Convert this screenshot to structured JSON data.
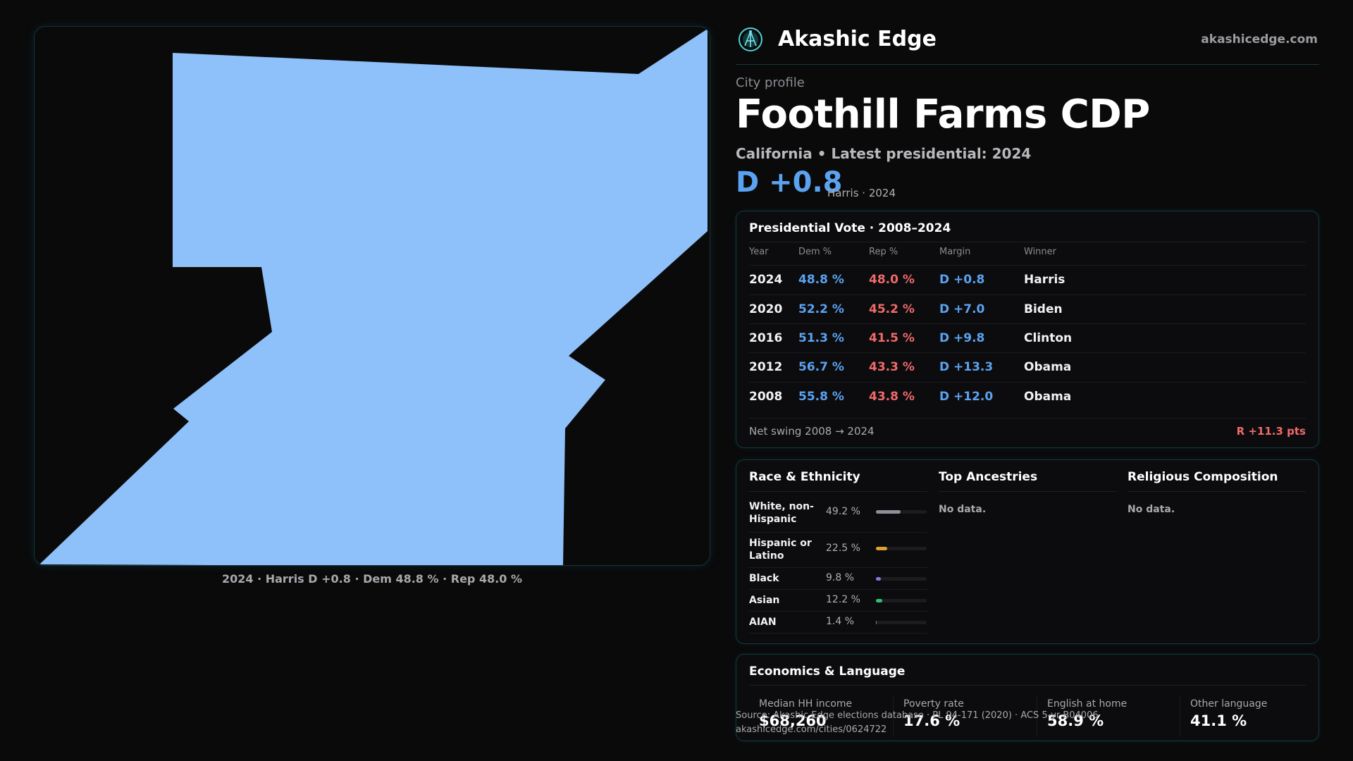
{
  "brand": {
    "name": "Akashic Edge",
    "url": "akashicedge.com",
    "logo_icon": "network-globe-icon"
  },
  "profile": {
    "eyebrow": "City profile",
    "title": "Foothill Farms CDP",
    "subtitle": "California • Latest presidential: 2024",
    "margin": "D +0.8",
    "margin_note": "Harris · 2024"
  },
  "map": {
    "caption": "2024 · Harris D +0.8 · Dem 48.8 % · Rep 48.0 %",
    "fill_color": "#8ec0f9"
  },
  "presidential": {
    "title": "Presidential Vote · 2008–2024",
    "headers": {
      "year": "Year",
      "dem": "Dem %",
      "rep": "Rep %",
      "margin": "Margin",
      "winner": "Winner"
    },
    "rows": [
      {
        "year": "2024",
        "dem": "48.8 %",
        "rep": "48.0 %",
        "margin": "D +0.8",
        "winner": "Harris"
      },
      {
        "year": "2020",
        "dem": "52.2 %",
        "rep": "45.2 %",
        "margin": "D +7.0",
        "winner": "Biden"
      },
      {
        "year": "2016",
        "dem": "51.3 %",
        "rep": "41.5 %",
        "margin": "D +9.8",
        "winner": "Clinton"
      },
      {
        "year": "2012",
        "dem": "56.7 %",
        "rep": "43.3 %",
        "margin": "D +13.3",
        "winner": "Obama"
      },
      {
        "year": "2008",
        "dem": "55.8 %",
        "rep": "43.8 %",
        "margin": "D +12.0",
        "winner": "Obama"
      }
    ],
    "swing_label": "Net swing 2008 → 2024",
    "swing_value": "R +11.3 pts"
  },
  "race": {
    "title": "Race & Ethnicity",
    "items": [
      {
        "name": "White, non-Hispanic",
        "value": "49.2 %",
        "pct": 49.2,
        "color": "#8e9097"
      },
      {
        "name": "Hispanic or Latino",
        "value": "22.5 %",
        "pct": 22.5,
        "color": "#e0a030"
      },
      {
        "name": "Black",
        "value": "9.8 %",
        "pct": 9.8,
        "color": "#8a78e0"
      },
      {
        "name": "Asian",
        "value": "12.2 %",
        "pct": 12.2,
        "color": "#2fbf73"
      },
      {
        "name": "AIAN",
        "value": "1.4 %",
        "pct": 1.4,
        "color": "#a07040"
      }
    ]
  },
  "ancestries": {
    "title": "Top Ancestries",
    "empty": "No data."
  },
  "religion": {
    "title": "Religious Composition",
    "empty": "No data."
  },
  "economics": {
    "title": "Economics & Language",
    "cells": [
      {
        "label": "Median HH income",
        "value": "$68,260"
      },
      {
        "label": "Poverty rate",
        "value": "17.6 %"
      },
      {
        "label": "English at home",
        "value": "58.9 %"
      },
      {
        "label": "Other language",
        "value": "41.1 %"
      }
    ]
  },
  "source": {
    "line1": "Source: Akashic Edge elections database · PL 94-171 (2020) · ACS 5-yr B04006",
    "line2": "akashicedge.com/cities/0624722"
  }
}
